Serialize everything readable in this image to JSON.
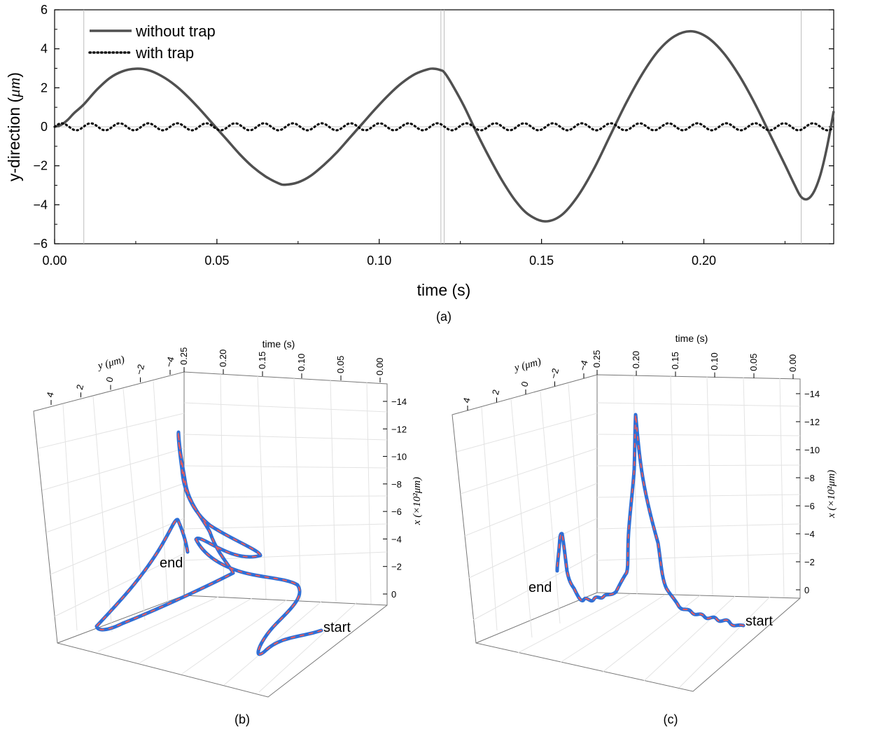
{
  "chart_data": [
    {
      "id": "a",
      "type": "line",
      "caption": "(a)",
      "xlabel": "time (s)",
      "ylabel": "y-direction (",
      "ylabel_unit": "μm",
      "ylabel_close": ")",
      "xlim": [
        0.0,
        0.24
      ],
      "ylim": [
        -6,
        6
      ],
      "xticks": [
        0.0,
        0.05,
        0.1,
        0.15,
        0.2
      ],
      "xtick_labels": [
        "0.00",
        "0.05",
        "0.10",
        "0.15",
        "0.20"
      ],
      "yticks": [
        -6,
        -4,
        -2,
        0,
        2,
        4,
        6
      ],
      "ytick_labels": [
        "−6",
        "−4",
        "−2",
        "0",
        "2",
        "4",
        "6"
      ],
      "vertical_reference_lines": [
        0.009,
        0.119,
        0.12,
        0.23
      ],
      "legend": {
        "position": "top-left"
      },
      "series": [
        {
          "name": "without trap",
          "style": "solid",
          "color": "#505050",
          "x": [
            0.0,
            0.002,
            0.004,
            0.006,
            0.009,
            0.013,
            0.017,
            0.021,
            0.025,
            0.029,
            0.033,
            0.037,
            0.041,
            0.045,
            0.049,
            0.053,
            0.057,
            0.061,
            0.065,
            0.069,
            0.071,
            0.075,
            0.079,
            0.083,
            0.087,
            0.091,
            0.095,
            0.099,
            0.103,
            0.107,
            0.111,
            0.115,
            0.117,
            0.119,
            0.12,
            0.122,
            0.126,
            0.13,
            0.134,
            0.138,
            0.142,
            0.146,
            0.151,
            0.156,
            0.161,
            0.166,
            0.171,
            0.176,
            0.181,
            0.186,
            0.191,
            0.196,
            0.201,
            0.206,
            0.211,
            0.216,
            0.221,
            0.225,
            0.228,
            0.23,
            0.232,
            0.234,
            0.236,
            0.238,
            0.24
          ],
          "values": [
            0.0,
            0.1,
            0.35,
            0.7,
            1.15,
            1.9,
            2.5,
            2.85,
            2.98,
            2.9,
            2.6,
            2.15,
            1.55,
            0.85,
            0.1,
            -0.65,
            -1.4,
            -2.05,
            -2.55,
            -2.9,
            -2.97,
            -2.85,
            -2.5,
            -1.95,
            -1.3,
            -0.55,
            0.2,
            0.95,
            1.65,
            2.25,
            2.7,
            2.95,
            2.98,
            2.9,
            2.8,
            2.3,
            1.1,
            -0.3,
            -1.6,
            -2.8,
            -3.8,
            -4.5,
            -4.85,
            -4.55,
            -3.6,
            -2.2,
            -0.5,
            1.2,
            2.7,
            3.9,
            4.65,
            4.9,
            4.6,
            3.8,
            2.6,
            1.1,
            -0.6,
            -1.95,
            -3.0,
            -3.6,
            -3.7,
            -3.3,
            -2.4,
            -1.0,
            0.8
          ]
        },
        {
          "name": "with trap",
          "style": "dotted",
          "color": "#111111",
          "amplitude": 0.18,
          "period": 0.0089
        }
      ]
    },
    {
      "id": "b",
      "type": "line3d",
      "caption": "(b)",
      "time_axis_title": "time (s)",
      "time_ticks": [
        "0.25",
        "0.20",
        "0.15",
        "0.10",
        "0.05",
        "0.00"
      ],
      "y_axis_title": "y (μm)",
      "y_ticks": [
        "4",
        "2",
        "0",
        "−2",
        "−4"
      ],
      "x_axis_title": "x (×10²μm)",
      "x_ticks": [
        "0",
        "−2",
        "−4",
        "−6",
        "−8",
        "−10",
        "−12",
        "−14"
      ],
      "start_label": "start",
      "end_label": "end",
      "line_colors": [
        "#2f6fd6",
        "#e85a5a"
      ]
    },
    {
      "id": "c",
      "type": "line3d",
      "caption": "(c)",
      "time_axis_title": "time (s)",
      "time_ticks": [
        "0.25",
        "0.20",
        "0.15",
        "0.10",
        "0.05",
        "0.00"
      ],
      "y_axis_title": "y (μm)",
      "y_ticks": [
        "4",
        "2",
        "0",
        "−2",
        "−4"
      ],
      "x_axis_title": "x (×10²μm)",
      "x_ticks": [
        "0",
        "−2",
        "−4",
        "−6",
        "−8",
        "−10",
        "−12",
        "−14"
      ],
      "start_label": "start",
      "end_label": "end",
      "line_colors": [
        "#2f6fd6",
        "#e85a5a"
      ]
    }
  ]
}
